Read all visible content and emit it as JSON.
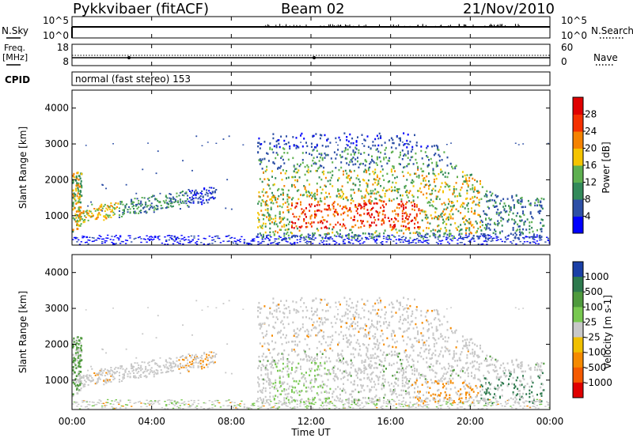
{
  "header": {
    "station": "Pykkvibaer (fitACF)",
    "beam": "Beam 02",
    "date": "21/Nov/2010"
  },
  "nsky_panel": {
    "left_label": "N.Sky",
    "right_label": "N.Search",
    "left_ticks": [
      "10^5",
      "10^0"
    ],
    "right_ticks": [
      "10^5",
      "10^0"
    ]
  },
  "freq_panel": {
    "left_label_1": "Freq.",
    "left_label_2": "[MHz]",
    "right_label": "Nave",
    "left_ticks": [
      "18",
      "8"
    ],
    "right_ticks": [
      "60",
      "0"
    ]
  },
  "cpid_panel": {
    "label": "CPID",
    "text": "normal (fast stereo) 153"
  },
  "chart_data": [
    {
      "type": "heatmap",
      "panel": "power",
      "ylabel": "Slant Range [km]",
      "xlabel": "Time UT",
      "yticks": [
        "1000",
        "2000",
        "3000",
        "4000"
      ],
      "xticks": [
        "00:00",
        "04:00",
        "08:00",
        "12:00",
        "16:00",
        "20:00",
        "00:00"
      ],
      "ylim": [
        180,
        4500
      ],
      "colorbar": {
        "label": "Power [dB]",
        "tick_labels": [
          "4",
          "8",
          "12",
          "16",
          "20",
          "24",
          "28"
        ],
        "colors": [
          "#0000ff",
          "#2d4fa6",
          "#338a5a",
          "#5eb050",
          "#f5c400",
          "#f58200",
          "#f53000",
          "#e00000"
        ]
      },
      "regions": [
        {
          "time": [
            0.0,
            0.4
          ],
          "range": [
            600,
            2200
          ],
          "level": "high"
        },
        {
          "time": [
            0.5,
            7.2
          ],
          "range": [
            900,
            1700
          ],
          "level": "mid"
        },
        {
          "time": [
            9.3,
            22.0
          ],
          "range": [
            500,
            3300
          ],
          "level": "high"
        },
        {
          "time": [
            12.0,
            17.0
          ],
          "range": [
            700,
            1300
          ],
          "level": "very-high"
        }
      ]
    },
    {
      "type": "heatmap",
      "panel": "velocity",
      "ylabel": "Slant Range [km]",
      "xlabel": "Time UT",
      "yticks": [
        "1000",
        "2000",
        "3000",
        "4000"
      ],
      "xticks": [
        "00:00",
        "04:00",
        "08:00",
        "12:00",
        "16:00",
        "20:00",
        "00:00"
      ],
      "ylim": [
        180,
        4500
      ],
      "colorbar": {
        "label": "Velocity [m s-1]",
        "tick_labels": [
          "1000",
          "500",
          "100",
          "25",
          "-25",
          "-100",
          "-500",
          "-1000"
        ],
        "colors": [
          "#1a3fa6",
          "#2e7a4e",
          "#4f9a3d",
          "#78c850",
          "#c8c8c8",
          "#f0c000",
          "#f58a00",
          "#f55a00",
          "#e00000"
        ]
      },
      "regions": [
        {
          "time": [
            0.5,
            7.2
          ],
          "range": [
            900,
            1800
          ],
          "level": "ground-scatter"
        },
        {
          "time": [
            9.3,
            22.0
          ],
          "range": [
            500,
            3300
          ],
          "level": "mixed"
        }
      ]
    }
  ]
}
